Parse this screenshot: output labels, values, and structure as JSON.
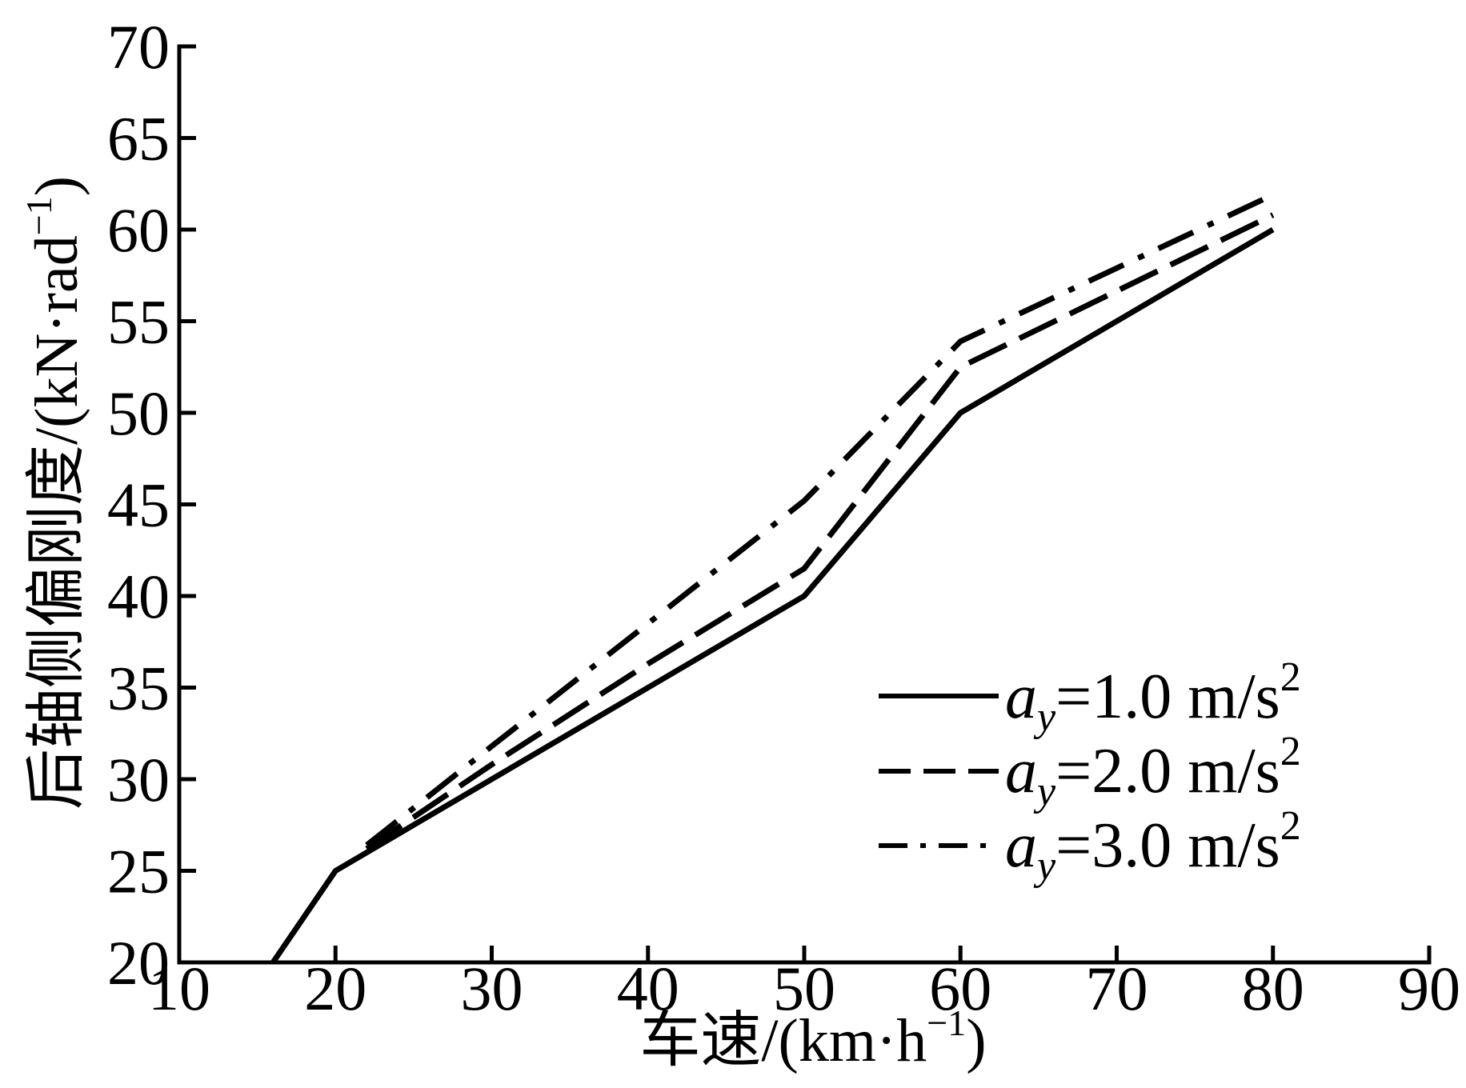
{
  "chart_data": {
    "type": "line",
    "xlim": [
      10,
      90
    ],
    "ylim": [
      20,
      70
    ],
    "xticks": [
      10,
      20,
      30,
      40,
      50,
      60,
      70,
      80,
      90
    ],
    "yticks": [
      20,
      25,
      30,
      35,
      40,
      45,
      50,
      55,
      60,
      65,
      70
    ],
    "xlabel": {
      "main": "车速/(km·h",
      "sup": "−1",
      "tail": ")"
    },
    "ylabel": {
      "main": "后轴侧偏刚度/(kN·rad",
      "sup": "−1",
      "tail": ")"
    },
    "grid": false,
    "legend": "right",
    "series": [
      {
        "name": {
          "var": "a",
          "sub": "y",
          "text": "=1.0 m/s",
          "sup": "2"
        },
        "line_style": "solid",
        "x": [
          16,
          20,
          30,
          40,
          50,
          60,
          70,
          80
        ],
        "y": [
          20,
          25,
          30,
          35,
          40,
          50,
          55,
          60
        ]
      },
      {
        "name": {
          "var": "a",
          "sub": "y",
          "text": "=2.0 m/s",
          "sup": "2"
        },
        "line_style": "dashed",
        "x": [
          22,
          30,
          40,
          50,
          60,
          80
        ],
        "y": [
          26.2,
          30.8,
          36.3,
          41.5,
          52.5,
          60.8
        ]
      },
      {
        "name": {
          "var": "a",
          "sub": "y",
          "text": "=3.0 m/s",
          "sup": "2"
        },
        "line_style": "dash-dot",
        "x": [
          22,
          30,
          40,
          50,
          60,
          80
        ],
        "y": [
          26.4,
          31.8,
          38.5,
          45.2,
          53.9,
          61.9
        ]
      }
    ]
  }
}
